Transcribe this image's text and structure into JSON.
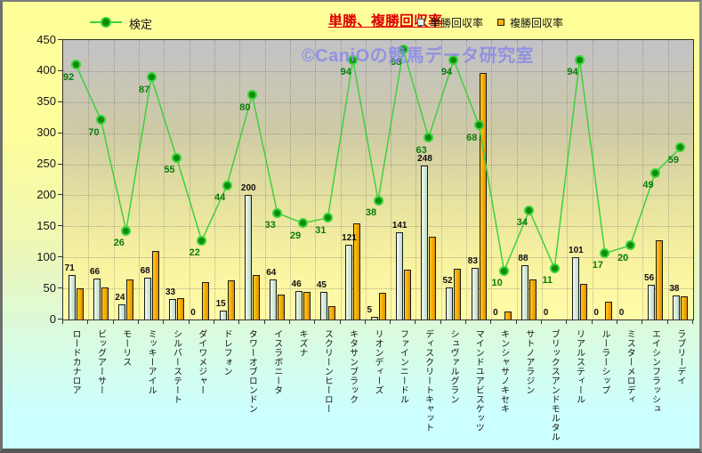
{
  "title": {
    "text": "単勝、複勝回収率",
    "color": "#e00000"
  },
  "watermark": {
    "text": "©CaniOの競馬データ研究室",
    "color": "#8a8ae8"
  },
  "legend": {
    "line": {
      "label": "検定",
      "line_color": "#3fd03f",
      "marker_fill": "#0e8a0e",
      "marker_ring": "#38d438"
    },
    "bars": [
      {
        "label": "単勝回収率",
        "swatch_fill": "#e2f5ea",
        "swatch_border": "#2e6e6e"
      },
      {
        "label": "複勝回収率",
        "swatch_fill": "#ffb300",
        "swatch_border": "#1a1a1a"
      }
    ]
  },
  "y_axis": {
    "tick_labels": [
      "0",
      "50",
      "100",
      "150",
      "200",
      "250",
      "300",
      "350",
      "400",
      "450"
    ]
  },
  "chart_data": {
    "type": "bar",
    "title": "単勝、複勝回収率",
    "ylim": [
      0,
      450
    ],
    "ytick_step": 50,
    "grid": true,
    "legend_position": "top",
    "categories": [
      "ロードカナロア",
      "ビッグアーサー",
      "モーリス",
      "ミッキーアイル",
      "シルバーステート",
      "ダイワメジャー",
      "ドレフォン",
      "タワーオブロンドン",
      "イスラボニータ",
      "キズナ",
      "スクリーンヒーロー",
      "キタサンブラック",
      "リオンディーズ",
      "ファインニードル",
      "ディスクリートキャット",
      "シュヴァルグラン",
      "マインドユアビスケッツ",
      "キンシャサノキセキ",
      "サトノアラジン",
      "ブリックスアンドモルタル",
      "リアルスティール",
      "ルーラーシップ",
      "ミスターメロディ",
      "エイシンフラッシュ",
      "ラブリーデイ"
    ],
    "series": [
      {
        "name": "単勝回収率",
        "type": "bar",
        "color": "#d2e9da",
        "values": [
          71,
          66,
          24,
          68,
          33,
          0,
          15,
          200,
          64,
          46,
          45,
          121,
          5,
          141,
          248,
          52,
          83,
          0,
          88,
          0,
          101,
          0,
          0,
          56,
          38
        ],
        "data_labels_shown": true
      },
      {
        "name": "複勝回収率",
        "type": "bar",
        "color": "#f7a900",
        "values": [
          50,
          52,
          64,
          110,
          34,
          60,
          63,
          72,
          40,
          44,
          22,
          155,
          43,
          80,
          133,
          82,
          397,
          13,
          65,
          0,
          57,
          29,
          0,
          128,
          37
        ],
        "data_labels_shown": false,
        "note": "values estimated from bar heights; no data labels rendered for this series"
      },
      {
        "name": "検定",
        "type": "line",
        "color": "#3fd03f",
        "values": [
          92,
          70,
          26,
          87,
          55,
          22,
          44,
          80,
          33,
          29,
          31,
          94,
          38,
          98,
          63,
          94,
          68,
          10,
          34,
          11,
          94,
          17,
          20,
          49,
          59
        ],
        "data_labels_shown": true,
        "secondary_axis_note": "line plotted on hidden secondary axis; primary-axis-equivalent position = 4.04*value + 38"
      }
    ]
  }
}
